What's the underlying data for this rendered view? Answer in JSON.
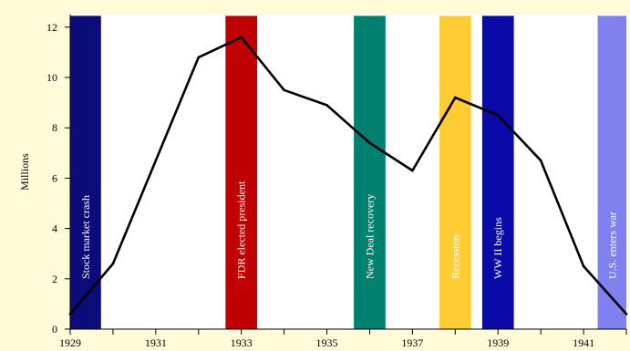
{
  "chart_data": {
    "type": "line",
    "title": "",
    "xlabel": "",
    "ylabel": "Millions",
    "xlim": [
      1929,
      1942
    ],
    "ylim": [
      0,
      12.5
    ],
    "x_ticks": [
      1929,
      1930,
      1931,
      1932,
      1933,
      1934,
      1935,
      1936,
      1937,
      1938,
      1939,
      1940,
      1941,
      1942
    ],
    "x_tick_labels": [
      "1929",
      "1931",
      "1933",
      "1935",
      "1937",
      "1939",
      "1941"
    ],
    "y_ticks": [
      0,
      2,
      4,
      6,
      8,
      10,
      12
    ],
    "y_tick_labels": [
      "0",
      "2",
      "4",
      "6",
      "8",
      "10",
      "12"
    ],
    "grid": false,
    "series": [
      {
        "name": "",
        "color": "#000000",
        "x": [
          1929,
          1930,
          1931,
          1932,
          1933,
          1934,
          1935,
          1936,
          1937,
          1938,
          1939,
          1940,
          1941,
          1942
        ],
        "y": [
          0.6,
          2.6,
          6.7,
          10.8,
          11.6,
          9.5,
          8.9,
          7.4,
          6.3,
          9.2,
          8.5,
          6.7,
          2.5,
          0.6
        ]
      }
    ],
    "events": [
      {
        "label": "Stock market crash",
        "x_start": 1929.0,
        "x_end": 1929.72,
        "color": "#0b0b7a",
        "text_color": "#ffffff"
      },
      {
        "label": "FDR elected president",
        "x_start": 1932.63,
        "x_end": 1933.37,
        "color": "#c00000",
        "text_color": "#ffffff"
      },
      {
        "label": "New Deal recovery",
        "x_start": 1935.63,
        "x_end": 1936.37,
        "color": "#00806e",
        "text_color": "#ffffff"
      },
      {
        "label": "Recession",
        "x_start": 1937.63,
        "x_end": 1938.37,
        "color": "#ffcc33",
        "text_color": "#ffffff"
      },
      {
        "label": "WW II begins",
        "x_start": 1938.63,
        "x_end": 1939.37,
        "color": "#0a0aa8",
        "text_color": "#ffffff"
      },
      {
        "label": "U.S. enters war",
        "x_start": 1941.33,
        "x_end": 1942.07,
        "color": "#8080ee",
        "text_color": "#ffffff"
      }
    ]
  }
}
